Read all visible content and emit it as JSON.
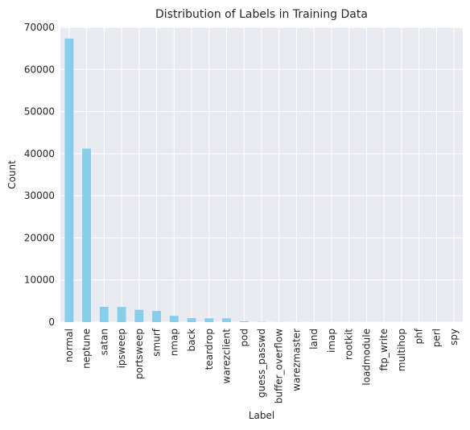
{
  "chart_data": {
    "type": "bar",
    "title": "Distribution of Labels in Training Data",
    "xlabel": "Label",
    "ylabel": "Count",
    "ylim": [
      0,
      70000
    ],
    "yticks": [
      "0",
      "10000",
      "20000",
      "30000",
      "40000",
      "50000",
      "60000",
      "70000"
    ],
    "grid": true,
    "bar_color": "#87ceeb",
    "background_color": "#eaeaf2",
    "categories": [
      "normal",
      "neptune",
      "satan",
      "ipsweep",
      "portsweep",
      "smurf",
      "nmap",
      "back",
      "teardrop",
      "warezclient",
      "pod",
      "guess_passwd",
      "buffer_overflow",
      "warezmaster",
      "land",
      "imap",
      "rootkit",
      "loadmodule",
      "ftp_write",
      "multihop",
      "phf",
      "perl",
      "spy"
    ],
    "values": [
      67343,
      41214,
      3633,
      3599,
      2931,
      2646,
      1493,
      956,
      892,
      890,
      201,
      53,
      30,
      20,
      18,
      11,
      10,
      9,
      8,
      7,
      4,
      3,
      2
    ]
  }
}
